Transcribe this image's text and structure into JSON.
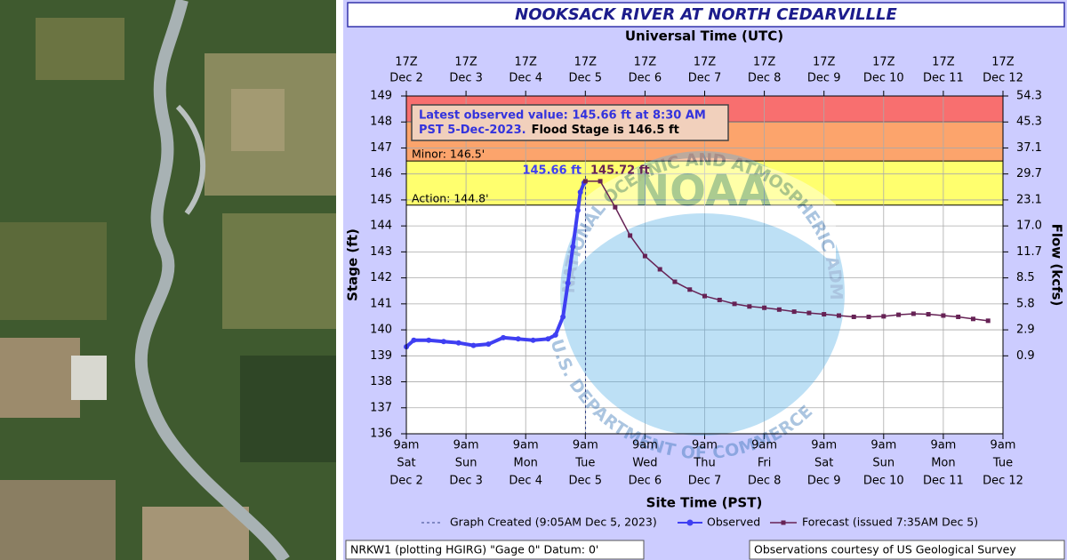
{
  "chart_data": {
    "type": "line",
    "title": "NOOKSACK RIVER AT NORTH CEDARVILLLE",
    "x_label_top": "Universal Time (UTC)",
    "x_label": "Site Time (PST)",
    "y_label": "Stage (ft)",
    "y2_label": "Flow (kcfs)",
    "xlim": [
      "2023-12-02T09:00-08:00",
      "2023-12-12T09:00-08:00"
    ],
    "xticks": [
      {
        "value": "2023-12-02T09:00-08:00",
        "label": [
          "9am",
          "Sat",
          "Dec 2"
        ]
      },
      {
        "value": "2023-12-03T09:00-08:00",
        "label": [
          "9am",
          "Sun",
          "Dec 3"
        ]
      },
      {
        "value": "2023-12-04T09:00-08:00",
        "label": [
          "9am",
          "Mon",
          "Dec 4"
        ]
      },
      {
        "value": "2023-12-05T09:00-08:00",
        "label": [
          "9am",
          "Tue",
          "Dec 5"
        ]
      },
      {
        "value": "2023-12-06T09:00-08:00",
        "label": [
          "9am",
          "Wed",
          "Dec 6"
        ]
      },
      {
        "value": "2023-12-07T09:00-08:00",
        "label": [
          "9am",
          "Thu",
          "Dec 7"
        ]
      },
      {
        "value": "2023-12-08T09:00-08:00",
        "label": [
          "9am",
          "Fri",
          "Dec 8"
        ]
      },
      {
        "value": "2023-12-09T09:00-08:00",
        "label": [
          "9am",
          "Sat",
          "Dec 9"
        ]
      },
      {
        "value": "2023-12-10T09:00-08:00",
        "label": [
          "9am",
          "Sun",
          "Dec 10"
        ]
      },
      {
        "value": "2023-12-11T09:00-08:00",
        "label": [
          "9am",
          "Mon",
          "Dec 11"
        ]
      },
      {
        "value": "2023-12-12T09:00-08:00",
        "label": [
          "9am",
          "Tue",
          "Dec 12"
        ]
      }
    ],
    "x2ticks": [
      {
        "value": "2023-12-02T17:00Z",
        "label": [
          "17Z",
          "Dec 2"
        ]
      },
      {
        "value": "2023-12-03T17:00Z",
        "label": [
          "17Z",
          "Dec 3"
        ]
      },
      {
        "value": "2023-12-04T17:00Z",
        "label": [
          "17Z",
          "Dec 4"
        ]
      },
      {
        "value": "2023-12-05T17:00Z",
        "label": [
          "17Z",
          "Dec 5"
        ]
      },
      {
        "value": "2023-12-06T17:00Z",
        "label": [
          "17Z",
          "Dec 6"
        ]
      },
      {
        "value": "2023-12-07T17:00Z",
        "label": [
          "17Z",
          "Dec 7"
        ]
      },
      {
        "value": "2023-12-08T17:00Z",
        "label": [
          "17Z",
          "Dec 8"
        ]
      },
      {
        "value": "2023-12-09T17:00Z",
        "label": [
          "17Z",
          "Dec 9"
        ]
      },
      {
        "value": "2023-12-10T17:00Z",
        "label": [
          "17Z",
          "Dec 10"
        ]
      },
      {
        "value": "2023-12-11T17:00Z",
        "label": [
          "17Z",
          "Dec 11"
        ]
      },
      {
        "value": "2023-12-12T17:00Z",
        "label": [
          "17Z",
          "Dec 12"
        ]
      }
    ],
    "ylim": [
      136,
      149
    ],
    "yticks": [
      136,
      137,
      138,
      139,
      140,
      141,
      142,
      143,
      144,
      145,
      146,
      147,
      148,
      149
    ],
    "y2ticks": [
      {
        "value": 0.9,
        "label": "0.9",
        "stage": 139
      },
      {
        "value": 2.9,
        "label": "2.9",
        "stage": 140
      },
      {
        "value": 5.8,
        "label": "5.8",
        "stage": 141
      },
      {
        "value": 8.5,
        "label": "8.5",
        "stage": 142
      },
      {
        "value": 11.7,
        "label": "11.7",
        "stage": 143
      },
      {
        "value": 17,
        "label": "17.0",
        "stage": 144
      },
      {
        "value": 23.1,
        "label": "23.1",
        "stage": 145
      },
      {
        "value": 29.7,
        "label": "29.7",
        "stage": 146
      },
      {
        "value": 37.1,
        "label": "37.1",
        "stage": 147
      },
      {
        "value": 45.3,
        "label": "45.3",
        "stage": 148
      },
      {
        "value": 54.3,
        "label": "54.3",
        "stage": 149
      }
    ],
    "grid": true,
    "flood_levels": [
      {
        "label": "Action: 144.8'",
        "value": 144.8,
        "color": "#ffff6e"
      },
      {
        "label": "Minor: 146.5'",
        "value": 146.5,
        "color": "#fca46c"
      },
      {
        "value": 148,
        "color": "#f86f6f"
      }
    ],
    "series": [
      {
        "name": "Observed",
        "color": "#3f3ff2",
        "x": [
          "2023-12-02T09:00-08:00",
          "2023-12-02T12:00-08:00",
          "2023-12-02T18:00-08:00",
          "2023-12-03T00:00-08:00",
          "2023-12-03T06:00-08:00",
          "2023-12-03T12:00-08:00",
          "2023-12-03T18:00-08:00",
          "2023-12-04T00:00-08:00",
          "2023-12-04T06:00-08:00",
          "2023-12-04T12:00-08:00",
          "2023-12-04T18:00-08:00",
          "2023-12-04T21:00-08:00",
          "2023-12-05T00:00-08:00",
          "2023-12-05T02:00-08:00",
          "2023-12-05T04:00-08:00",
          "2023-12-05T06:00-08:00",
          "2023-12-05T07:00-08:00",
          "2023-12-05T08:30-08:00"
        ],
        "values": [
          139.35,
          139.6,
          139.6,
          139.55,
          139.5,
          139.4,
          139.45,
          139.7,
          139.65,
          139.6,
          139.65,
          139.8,
          140.5,
          141.8,
          143.2,
          144.6,
          145.3,
          145.66
        ]
      },
      {
        "name": "Forecast (issued 7:35AM Dec 5)",
        "color": "#662255",
        "x": [
          "2023-12-05T09:00-08:00",
          "2023-12-05T15:00-08:00",
          "2023-12-05T21:00-08:00",
          "2023-12-06T03:00-08:00",
          "2023-12-06T09:00-08:00",
          "2023-12-06T15:00-08:00",
          "2023-12-06T21:00-08:00",
          "2023-12-07T03:00-08:00",
          "2023-12-07T09:00-08:00",
          "2023-12-07T15:00-08:00",
          "2023-12-07T21:00-08:00",
          "2023-12-08T03:00-08:00",
          "2023-12-08T09:00-08:00",
          "2023-12-08T15:00-08:00",
          "2023-12-08T21:00-08:00",
          "2023-12-09T03:00-08:00",
          "2023-12-09T09:00-08:00",
          "2023-12-09T15:00-08:00",
          "2023-12-09T21:00-08:00",
          "2023-12-10T03:00-08:00",
          "2023-12-10T09:00-08:00",
          "2023-12-10T15:00-08:00",
          "2023-12-10T21:00-08:00",
          "2023-12-11T03:00-08:00",
          "2023-12-11T09:00-08:00",
          "2023-12-11T15:00-08:00",
          "2023-12-11T21:00-08:00",
          "2023-12-12T03:00-08:00"
        ],
        "values": [
          145.72,
          145.72,
          144.72,
          143.63,
          142.84,
          142.33,
          141.85,
          141.55,
          141.3,
          141.15,
          141.0,
          140.9,
          140.85,
          140.78,
          140.7,
          140.65,
          140.6,
          140.55,
          140.5,
          140.5,
          140.52,
          140.58,
          140.62,
          140.6,
          140.55,
          140.5,
          140.42,
          140.35
        ]
      }
    ],
    "annotations": [
      "145.66 ft",
      "145.72 ft"
    ],
    "graph_created": {
      "name": "Graph Created (9:05AM Dec 5, 2023)",
      "x": "2023-12-05T09:05-08:00"
    },
    "info_box": {
      "observed_text": [
        "Latest observed value: 145.66 ft at 8:30 AM",
        "PST 5-Dec-2023."
      ],
      "flood_stage_text": "Flood Stage is 146.5 ft"
    },
    "watermark": {
      "logo": "NOAA",
      "top_ring": "NATIONAL OCEANIC AND ATMOSPHERIC ADMINISTRATION",
      "bottom_ring": "U.S. DEPARTMENT OF COMMERCE"
    },
    "footer_left": "NRKW1 (plotting HGIRG) \"Gage 0\" Datum: 0'",
    "footer_right": "Observations courtesy of US Geological Survey"
  }
}
